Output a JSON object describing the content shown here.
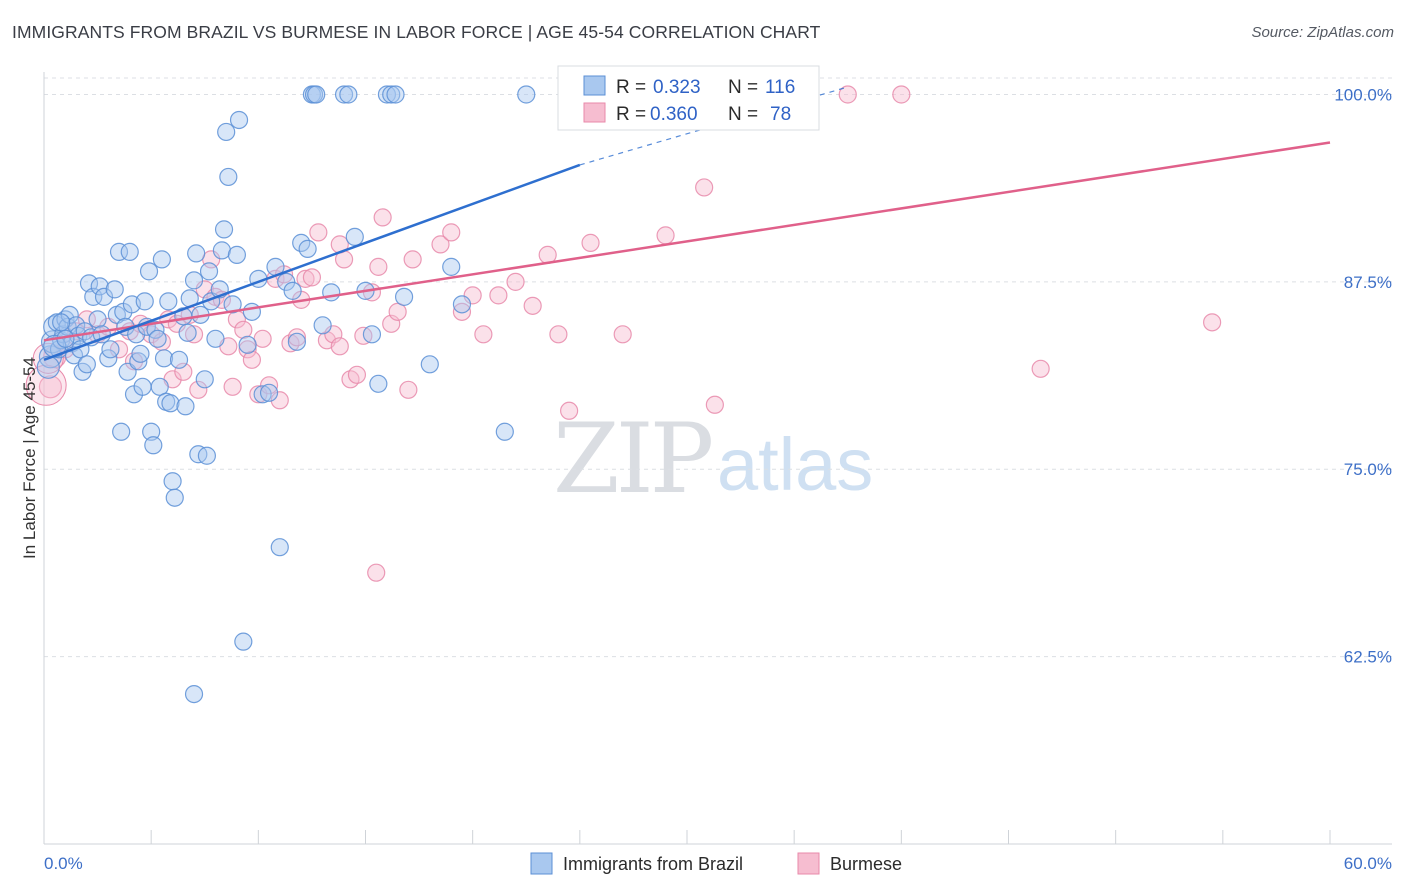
{
  "header": {
    "title": "IMMIGRANTS FROM BRAZIL VS BURMESE IN LABOR FORCE | AGE 45-54 CORRELATION CHART",
    "source": "Source: ZipAtlas.com"
  },
  "watermark": {
    "zip": "ZIP",
    "atlas": "atlas"
  },
  "colors": {
    "blue_fill": "#a9c8ef",
    "blue_stroke": "#5b8fd6",
    "blue_line": "#2e6fcf",
    "pink_fill": "#f6bdd0",
    "pink_stroke": "#e889aa",
    "pink_line": "#e0608a",
    "grid": "#dcdfe4",
    "tick_text": "#3d6fc7"
  },
  "legend": {
    "rows": [
      {
        "r_label": "R =",
        "r_value": "0.323",
        "n_label": "N =",
        "n_value": "116"
      },
      {
        "r_label": "R =",
        "r_value": "0.360",
        "n_label": "N =",
        "n_value": "78"
      }
    ]
  },
  "bottom_legend": {
    "series1": "Immigrants from Brazil",
    "series2": "Burmese"
  },
  "chart_data": {
    "type": "scatter",
    "title": "IMMIGRANTS FROM BRAZIL VS BURMESE IN LABOR FORCE | AGE 45-54 CORRELATION CHART",
    "xlabel": "",
    "ylabel": "In Labor Force | Age 45-54",
    "xlim": [
      0,
      60
    ],
    "ylim": [
      50,
      101.5
    ],
    "x_tick_labels": [
      "0.0%",
      "60.0%"
    ],
    "y_ticks": [
      62.5,
      75.0,
      87.5,
      100.0
    ],
    "y_tick_labels": [
      "62.5%",
      "75.0%",
      "87.5%",
      "100.0%"
    ],
    "grid": true,
    "legend_position": "top-center",
    "series": [
      {
        "name": "Immigrants from Brazil",
        "R": 0.323,
        "N": 116,
        "trend": {
          "x0": 0.0,
          "y0": 82.3,
          "x1": 25.0,
          "y1": 95.3,
          "dashed_to_x": 37.5,
          "dashed_to_y": 100.5
        },
        "points": [
          [
            0.3,
            82.5
          ],
          [
            0.4,
            83.5
          ],
          [
            0.5,
            84.5
          ],
          [
            0.6,
            84.8
          ],
          [
            0.7,
            83.0
          ],
          [
            0.8,
            83.6
          ],
          [
            0.9,
            84.0
          ],
          [
            1.0,
            85.0
          ],
          [
            1.1,
            84.5
          ],
          [
            1.2,
            85.3
          ],
          [
            1.3,
            83.4
          ],
          [
            1.4,
            82.6
          ],
          [
            1.5,
            84.6
          ],
          [
            1.6,
            83.9
          ],
          [
            1.7,
            83.0
          ],
          [
            1.8,
            81.5
          ],
          [
            1.9,
            84.2
          ],
          [
            2.0,
            82.0
          ],
          [
            2.1,
            87.4
          ],
          [
            2.2,
            83.8
          ],
          [
            2.3,
            86.5
          ],
          [
            2.5,
            85.0
          ],
          [
            2.6,
            87.2
          ],
          [
            2.7,
            84.0
          ],
          [
            2.8,
            86.5
          ],
          [
            3.0,
            82.4
          ],
          [
            3.1,
            83.0
          ],
          [
            3.3,
            87.0
          ],
          [
            3.4,
            85.3
          ],
          [
            3.5,
            89.5
          ],
          [
            3.6,
            77.5
          ],
          [
            3.7,
            85.5
          ],
          [
            3.8,
            84.5
          ],
          [
            3.9,
            81.5
          ],
          [
            4.0,
            89.5
          ],
          [
            4.1,
            86.0
          ],
          [
            4.2,
            80.0
          ],
          [
            4.3,
            84.0
          ],
          [
            4.4,
            82.2
          ],
          [
            4.5,
            82.7
          ],
          [
            4.6,
            80.5
          ],
          [
            4.7,
            86.2
          ],
          [
            4.8,
            84.5
          ],
          [
            4.9,
            88.2
          ],
          [
            5.0,
            77.5
          ],
          [
            5.1,
            76.6
          ],
          [
            5.2,
            84.3
          ],
          [
            5.3,
            83.7
          ],
          [
            5.4,
            80.5
          ],
          [
            5.5,
            89.0
          ],
          [
            5.6,
            82.4
          ],
          [
            5.7,
            79.5
          ],
          [
            5.8,
            86.2
          ],
          [
            5.9,
            79.4
          ],
          [
            6.0,
            74.2
          ],
          [
            6.1,
            73.1
          ],
          [
            6.3,
            82.3
          ],
          [
            6.5,
            85.2
          ],
          [
            6.6,
            79.2
          ],
          [
            6.7,
            84.1
          ],
          [
            6.8,
            86.4
          ],
          [
            7.0,
            87.6
          ],
          [
            7.1,
            89.4
          ],
          [
            7.2,
            76.0
          ],
          [
            7.3,
            85.3
          ],
          [
            7.5,
            81.0
          ],
          [
            7.6,
            75.9
          ],
          [
            7.7,
            88.2
          ],
          [
            7.8,
            86.2
          ],
          [
            8.0,
            83.7
          ],
          [
            8.2,
            87.0
          ],
          [
            8.3,
            89.6
          ],
          [
            8.4,
            91.0
          ],
          [
            8.5,
            97.5
          ],
          [
            8.6,
            94.5
          ],
          [
            8.8,
            86.0
          ],
          [
            9.0,
            89.3
          ],
          [
            9.1,
            98.3
          ],
          [
            9.3,
            63.5
          ],
          [
            9.5,
            83.3
          ],
          [
            9.7,
            85.5
          ],
          [
            10.0,
            87.7
          ],
          [
            10.2,
            80.0
          ],
          [
            10.5,
            80.1
          ],
          [
            10.8,
            88.5
          ],
          [
            11.0,
            69.8
          ],
          [
            11.3,
            87.5
          ],
          [
            11.6,
            86.9
          ],
          [
            11.8,
            83.5
          ],
          [
            12.0,
            90.1
          ],
          [
            12.3,
            89.7
          ],
          [
            12.5,
            100.0
          ],
          [
            12.6,
            100.0
          ],
          [
            12.7,
            100.0
          ],
          [
            13.0,
            84.6
          ],
          [
            13.4,
            86.8
          ],
          [
            14.0,
            100.0
          ],
          [
            14.2,
            100.0
          ],
          [
            14.5,
            90.5
          ],
          [
            15.0,
            86.9
          ],
          [
            15.3,
            84.0
          ],
          [
            15.6,
            80.7
          ],
          [
            16.0,
            100.0
          ],
          [
            16.2,
            100.0
          ],
          [
            16.4,
            100.0
          ],
          [
            16.8,
            86.5
          ],
          [
            18.0,
            82.0
          ],
          [
            19.0,
            88.5
          ],
          [
            19.5,
            86.0
          ],
          [
            21.5,
            77.5
          ],
          [
            22.5,
            100.0
          ],
          [
            7.0,
            60.0
          ],
          [
            0.2,
            81.8
          ],
          [
            0.5,
            83.2
          ],
          [
            1.0,
            83.7
          ],
          [
            0.8,
            84.8
          ]
        ]
      },
      {
        "name": "Burmese",
        "R": 0.36,
        "N": 78,
        "trend": {
          "x0": 0.0,
          "y0": 83.6,
          "x1": 60.0,
          "y1": 96.8
        },
        "points": [
          [
            0.3,
            80.5
          ],
          [
            0.5,
            82.5
          ],
          [
            1.0,
            83.0
          ],
          [
            1.5,
            84.2
          ],
          [
            2.0,
            85.0
          ],
          [
            2.5,
            84.0
          ],
          [
            3.0,
            84.5
          ],
          [
            3.5,
            83.0
          ],
          [
            4.0,
            84.2
          ],
          [
            4.2,
            82.2
          ],
          [
            4.5,
            84.7
          ],
          [
            5.0,
            84.0
          ],
          [
            5.5,
            83.5
          ],
          [
            5.8,
            85.0
          ],
          [
            6.0,
            81.0
          ],
          [
            6.2,
            84.7
          ],
          [
            6.5,
            81.5
          ],
          [
            6.8,
            85.3
          ],
          [
            7.0,
            84.0
          ],
          [
            7.2,
            80.3
          ],
          [
            7.5,
            87.0
          ],
          [
            7.8,
            89.0
          ],
          [
            8.0,
            86.5
          ],
          [
            8.3,
            86.3
          ],
          [
            8.6,
            83.2
          ],
          [
            8.8,
            80.5
          ],
          [
            9.0,
            85.0
          ],
          [
            9.3,
            84.3
          ],
          [
            9.5,
            83.0
          ],
          [
            9.7,
            82.3
          ],
          [
            10.0,
            80.0
          ],
          [
            10.2,
            83.7
          ],
          [
            10.5,
            80.6
          ],
          [
            10.8,
            87.7
          ],
          [
            11.0,
            79.6
          ],
          [
            11.2,
            88.0
          ],
          [
            11.5,
            83.4
          ],
          [
            11.8,
            83.8
          ],
          [
            12.0,
            86.3
          ],
          [
            12.2,
            87.7
          ],
          [
            12.5,
            87.8
          ],
          [
            12.8,
            90.8
          ],
          [
            13.2,
            83.6
          ],
          [
            13.5,
            84.0
          ],
          [
            13.8,
            83.2
          ],
          [
            14.0,
            89.0
          ],
          [
            14.3,
            81.0
          ],
          [
            14.6,
            81.3
          ],
          [
            14.9,
            83.9
          ],
          [
            15.3,
            86.8
          ],
          [
            15.6,
            88.5
          ],
          [
            15.8,
            91.8
          ],
          [
            16.2,
            84.7
          ],
          [
            16.5,
            85.5
          ],
          [
            17.0,
            80.3
          ],
          [
            17.2,
            89.0
          ],
          [
            18.5,
            90.0
          ],
          [
            19.0,
            90.8
          ],
          [
            19.5,
            85.5
          ],
          [
            20.0,
            86.6
          ],
          [
            20.5,
            84.0
          ],
          [
            21.2,
            86.6
          ],
          [
            22.0,
            87.5
          ],
          [
            22.8,
            85.9
          ],
          [
            23.5,
            89.3
          ],
          [
            24.0,
            84.0
          ],
          [
            24.5,
            78.9
          ],
          [
            25.5,
            90.1
          ],
          [
            27.0,
            84.0
          ],
          [
            29.0,
            90.6
          ],
          [
            30.8,
            93.8
          ],
          [
            31.3,
            79.3
          ],
          [
            37.5,
            100.0
          ],
          [
            40.0,
            100.0
          ],
          [
            46.5,
            81.7
          ],
          [
            54.5,
            84.8
          ],
          [
            15.5,
            68.1
          ],
          [
            13.8,
            90.0
          ]
        ]
      }
    ]
  }
}
